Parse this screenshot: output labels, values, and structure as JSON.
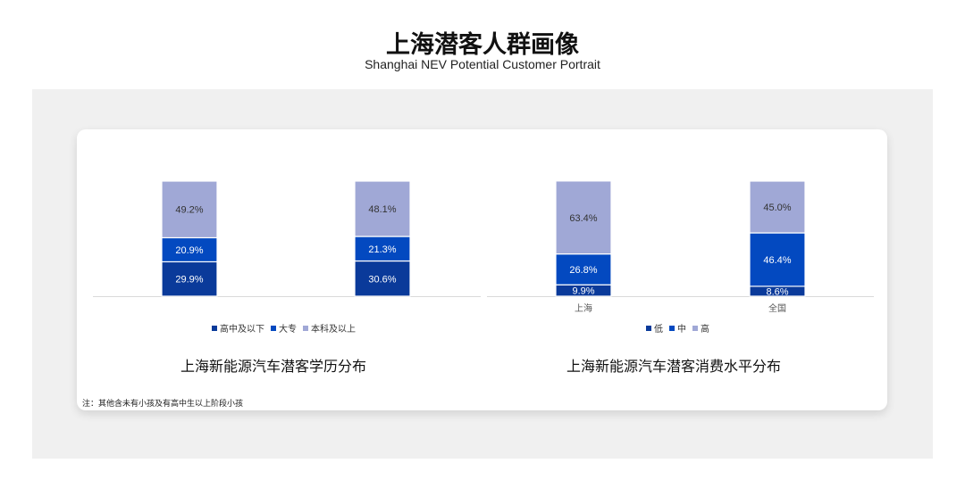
{
  "header": {
    "title": "上海潜客人群画像",
    "subtitle": "Shanghai NEV Potential Customer Portrait"
  },
  "colors": {
    "dark": "#0a3a9a",
    "mid": "#0349c0",
    "light": "#a0a8d6"
  },
  "chart_data": [
    {
      "type": "bar",
      "stacked": true,
      "title": "上海新能源汽车潜客学历分布",
      "categories": [
        "",
        ""
      ],
      "series": [
        {
          "name": "高中及以下",
          "values": [
            29.9,
            30.6
          ]
        },
        {
          "name": "大专",
          "values": [
            20.9,
            21.3
          ]
        },
        {
          "name": "本科及以上",
          "values": [
            49.2,
            48.1
          ]
        }
      ],
      "labels": [
        [
          "29.9%",
          "30.6%"
        ],
        [
          "20.9%",
          "21.3%"
        ],
        [
          "49.2%",
          "48.1%"
        ]
      ],
      "legend": "bottom",
      "grid": false
    },
    {
      "type": "bar",
      "stacked": true,
      "title": "上海新能源汽车潜客消费水平分布",
      "categories": [
        "上海",
        "全国"
      ],
      "series": [
        {
          "name": "低",
          "values": [
            9.9,
            8.6
          ]
        },
        {
          "name": "中",
          "values": [
            26.8,
            46.4
          ]
        },
        {
          "name": "高",
          "values": [
            63.4,
            45.0
          ]
        }
      ],
      "labels": [
        [
          "9.9%",
          "8.6%"
        ],
        [
          "26.8%",
          "46.4%"
        ],
        [
          "63.4%",
          "45.0%"
        ]
      ],
      "legend": "bottom",
      "grid": false
    }
  ],
  "note": "注：其他含未有小孩及有高中生以上阶段小孩"
}
